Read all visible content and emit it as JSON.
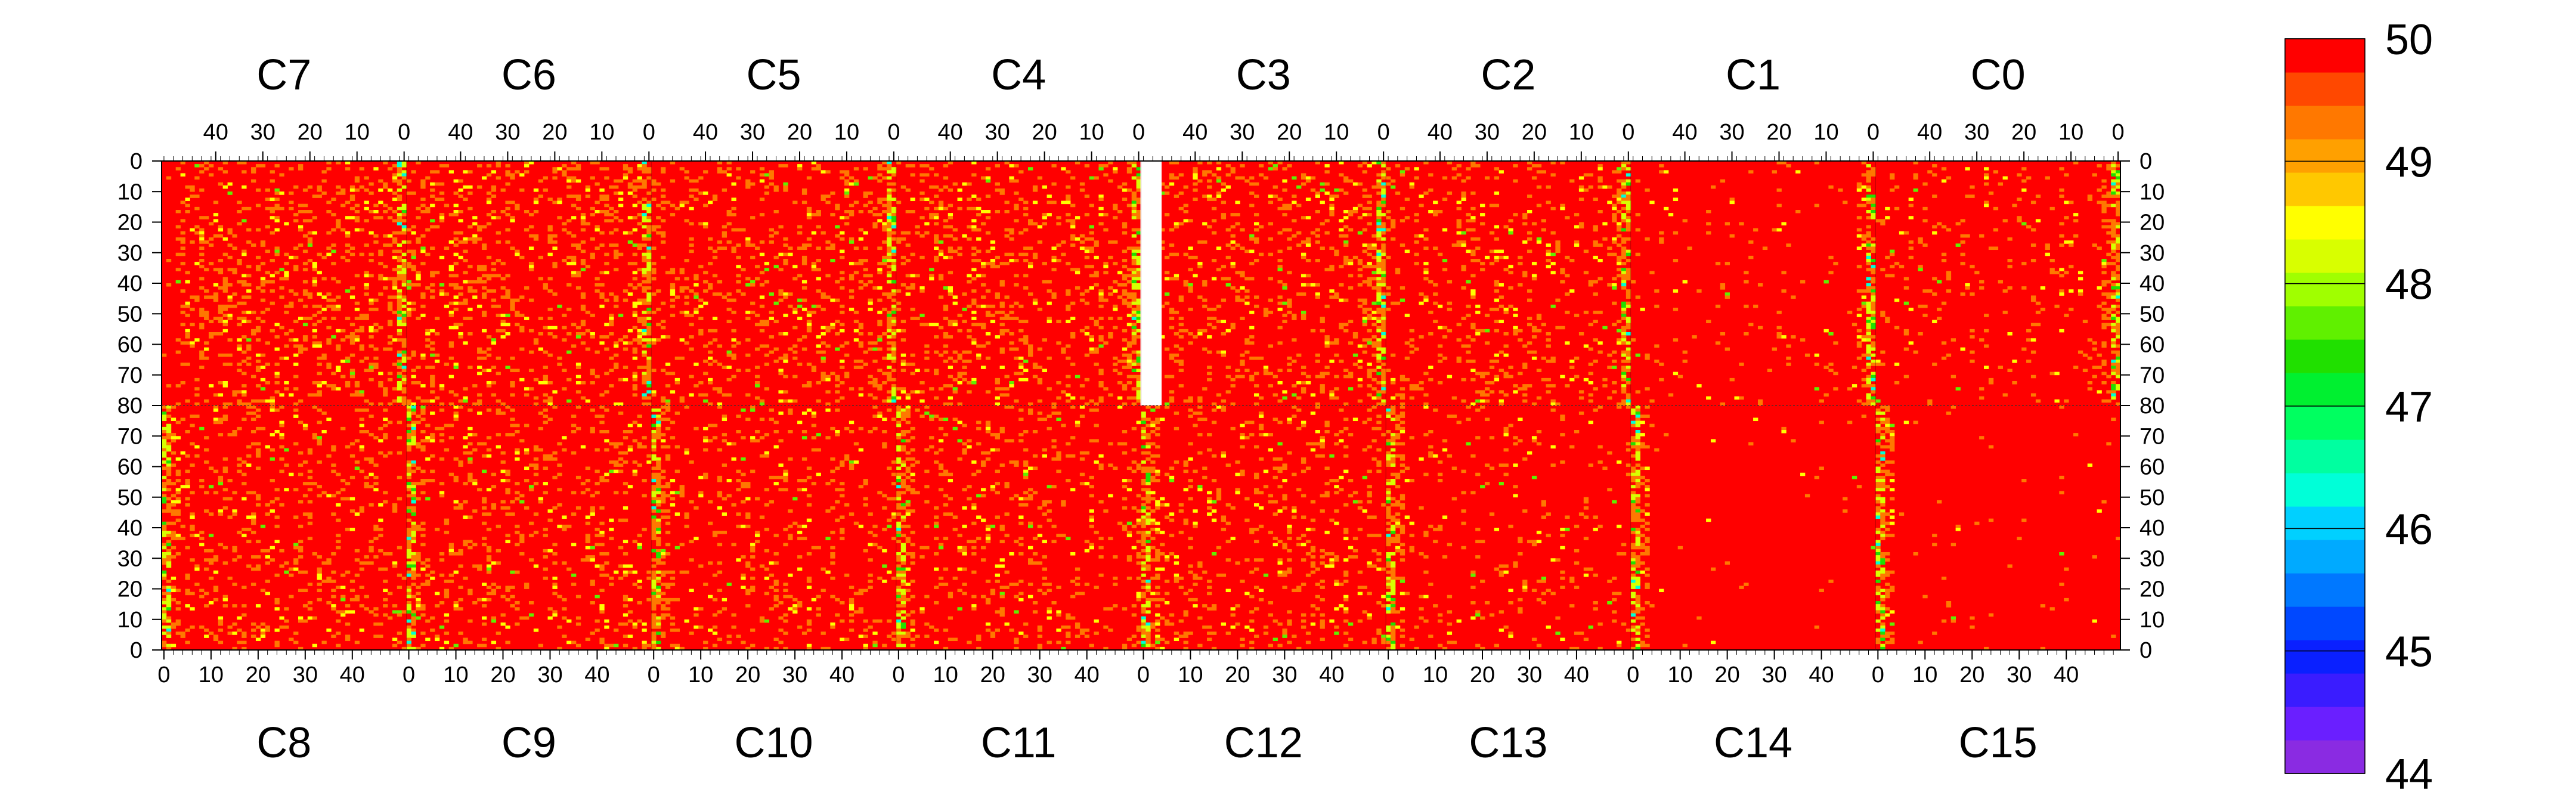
{
  "chart_data": {
    "type": "heatmap",
    "title": "",
    "zlim": [
      44,
      50
    ],
    "colorbar": {
      "ticks": [
        44,
        45,
        46,
        47,
        48,
        49,
        50
      ],
      "labels": [
        "44",
        "45",
        "46",
        "47",
        "48",
        "49",
        "50"
      ],
      "colors": [
        "#8a2be2",
        "#6a1fff",
        "#3a1cff",
        "#0a20ff",
        "#0048ff",
        "#0078ff",
        "#00aaff",
        "#00d0ff",
        "#00ffd8",
        "#00ffa0",
        "#00ff60",
        "#00f030",
        "#20e000",
        "#60f000",
        "#a0ff00",
        "#d8ff00",
        "#ffff00",
        "#ffc800",
        "#ffa000",
        "#ff7800",
        "#ff4800",
        "#ff0000"
      ]
    },
    "top_chips": [
      "C7",
      "C6",
      "C5",
      "C4",
      "C3",
      "C2",
      "C1",
      "C0"
    ],
    "bottom_chips": [
      "C8",
      "C9",
      "C10",
      "C11",
      "C12",
      "C13",
      "C14",
      "C15"
    ],
    "top_col_ticks": [
      "40",
      "30",
      "20",
      "10",
      "0"
    ],
    "bottom_col_ticks": [
      "0",
      "10",
      "20",
      "30",
      "40"
    ],
    "top_row_ticks": [
      "0",
      "10",
      "20",
      "30",
      "40",
      "50",
      "60",
      "70",
      "80"
    ],
    "bottom_row_ticks": [
      "70",
      "60",
      "50",
      "40",
      "30",
      "20",
      "10",
      "0"
    ],
    "columns_per_chip": 52,
    "rows_per_half": 80,
    "dominant_value": 50,
    "missing_region": {
      "chip": "C3",
      "column": 51,
      "rows": [
        0,
        79
      ]
    },
    "chip_noise_fraction": {
      "C7": 0.18,
      "C6": 0.17,
      "C5": 0.15,
      "C4": 0.16,
      "C3": 0.15,
      "C2": 0.13,
      "C1": 0.03,
      "C0": 0.07,
      "C8": 0.14,
      "C9": 0.13,
      "C10": 0.12,
      "C11": 0.12,
      "C12": 0.13,
      "C13": 0.06,
      "C14": 0.01,
      "C15": 0.01
    },
    "edge_columns_lower_values": {
      "top_chips_edge": "column 0 (right edge)",
      "bottom_chips_edge": "column 0 (left edge)",
      "typical_range": [
        46,
        49
      ]
    }
  }
}
